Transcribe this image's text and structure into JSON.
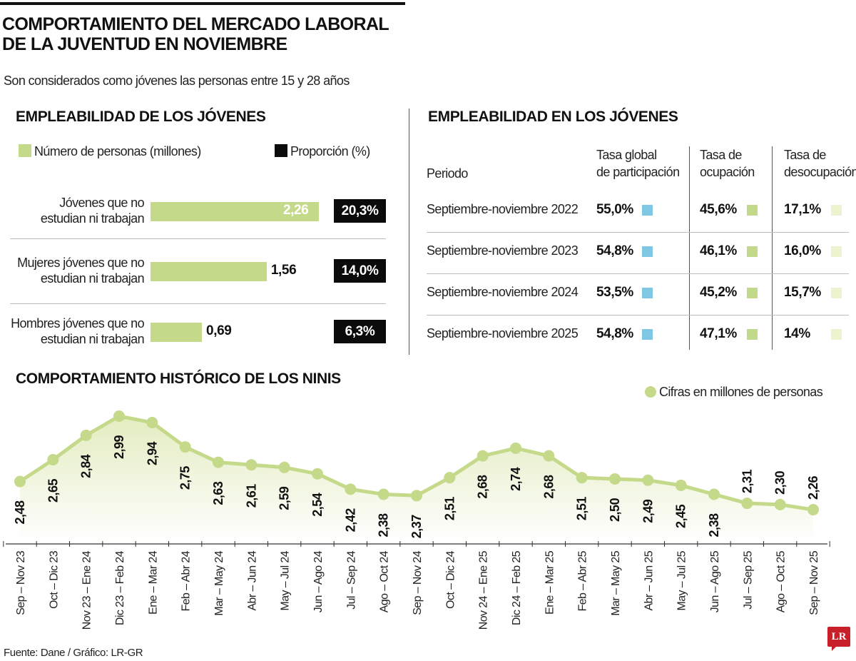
{
  "header": {
    "title_line1": "COMPORTAMIENTO DEL MERCADO LABORAL",
    "title_line2": "DE LA JUVENTUD EN NOVIEMBRE",
    "subtitle": "Son considerados como jóvenes las personas entre 15 y 28 años"
  },
  "colors": {
    "green": "#c5d98a",
    "black": "#0b0b0b",
    "blue": "#7ec8e3",
    "mid_green": "#c2d88a",
    "pale_green": "#eef3cf"
  },
  "chart_data": [
    {
      "type": "bar",
      "title": "EMPLEABILIDAD DE LOS JÓVENES",
      "legend": [
        "Número de personas (millones)",
        "Proporción (%)"
      ],
      "categories": [
        "Jóvenes que no estudian ni trabajan",
        "Mujeres jóvenes que no estudian ni trabajan",
        "Hombres jóvenes que no estudian ni trabajan"
      ],
      "category_lines": [
        [
          "Jóvenes que no",
          "estudian ni trabajan"
        ],
        [
          "Mujeres jóvenes que no",
          "estudian ni trabajan"
        ],
        [
          "Hombres jóvenes que no",
          "estudian ni trabajan"
        ]
      ],
      "values": [
        2.26,
        1.56,
        0.69
      ],
      "value_labels": [
        "2,26",
        "1,56",
        "0,69"
      ],
      "proportions": [
        "20,3%",
        "14,0%",
        "6,3%"
      ]
    },
    {
      "type": "table",
      "title": "EMPLEABILIDAD EN LOS JÓVENES",
      "columns": {
        "periodo": "Periodo",
        "global": [
          "Tasa global",
          "de participación"
        ],
        "ocupacion": [
          "Tasa de",
          "ocupación"
        ],
        "desocupacion": [
          "Tasa de",
          "desocupación"
        ]
      },
      "rows": [
        {
          "periodo": "Septiembre-noviembre 2022",
          "global": "55,0%",
          "ocupacion": "45,6%",
          "desocupacion": "17,1%"
        },
        {
          "periodo": "Septiembre-noviembre 2023",
          "global": "54,8%",
          "ocupacion": "46,1%",
          "desocupacion": "16,0%"
        },
        {
          "periodo": "Septiembre-noviembre 2024",
          "global": "53,5%",
          "ocupacion": "45,2%",
          "desocupacion": "15,7%"
        },
        {
          "periodo": "Septiembre-noviembre 2025",
          "global": "54,8%",
          "ocupacion": "47,1%",
          "desocupacion": "14%"
        }
      ]
    },
    {
      "type": "line",
      "title": "COMPORTAMIENTO HISTÓRICO DE LOS NINIS",
      "legend": "Cifras en millones de personas",
      "categories": [
        "Sep – Nov 23",
        "Oct – Dic 23",
        "Nov 23 – Ene 24",
        "Dic 23 – Feb 24",
        "Ene – Mar 24",
        "Feb – Abr 24",
        "Mar – May 24",
        "Abr – Jun 24",
        "May – Jul 24",
        "Jun – Ago 24",
        "Jul – Sep 24",
        "Ago – Oct 24",
        "Sep – Nov 24",
        "Oct – Dic 24",
        "Nov 24 – Ene 25",
        "Dic 24 – Feb 25",
        "Ene – Mar 25",
        "Feb – Abr 25",
        "Mar – May 25",
        "Abr – Jun 25",
        "May – Jul 25",
        "Jun – Ago 25",
        "Jul – Sep 25",
        "Ago – Oct 25",
        "Sep – Nov 25"
      ],
      "values": [
        2.48,
        2.65,
        2.84,
        2.99,
        2.94,
        2.75,
        2.63,
        2.61,
        2.59,
        2.54,
        2.42,
        2.38,
        2.37,
        2.51,
        2.68,
        2.74,
        2.68,
        2.51,
        2.5,
        2.49,
        2.45,
        2.38,
        2.31,
        2.3,
        2.26
      ],
      "value_labels": [
        "2,48",
        "2,65",
        "2,84",
        "2,99",
        "2,94",
        "2,75",
        "2,63",
        "2,61",
        "2,59",
        "2,54",
        "2,42",
        "2,38",
        "2,37",
        "2,51",
        "2,68",
        "2,74",
        "2,68",
        "2,51",
        "2,50",
        "2,49",
        "2,45",
        "2,38",
        "2,31",
        "2,30",
        "2,26"
      ],
      "grid": false
    }
  ],
  "footer": {
    "source": "Fuente: Dane / Gráfico: LR-GR",
    "logo": "LR"
  }
}
